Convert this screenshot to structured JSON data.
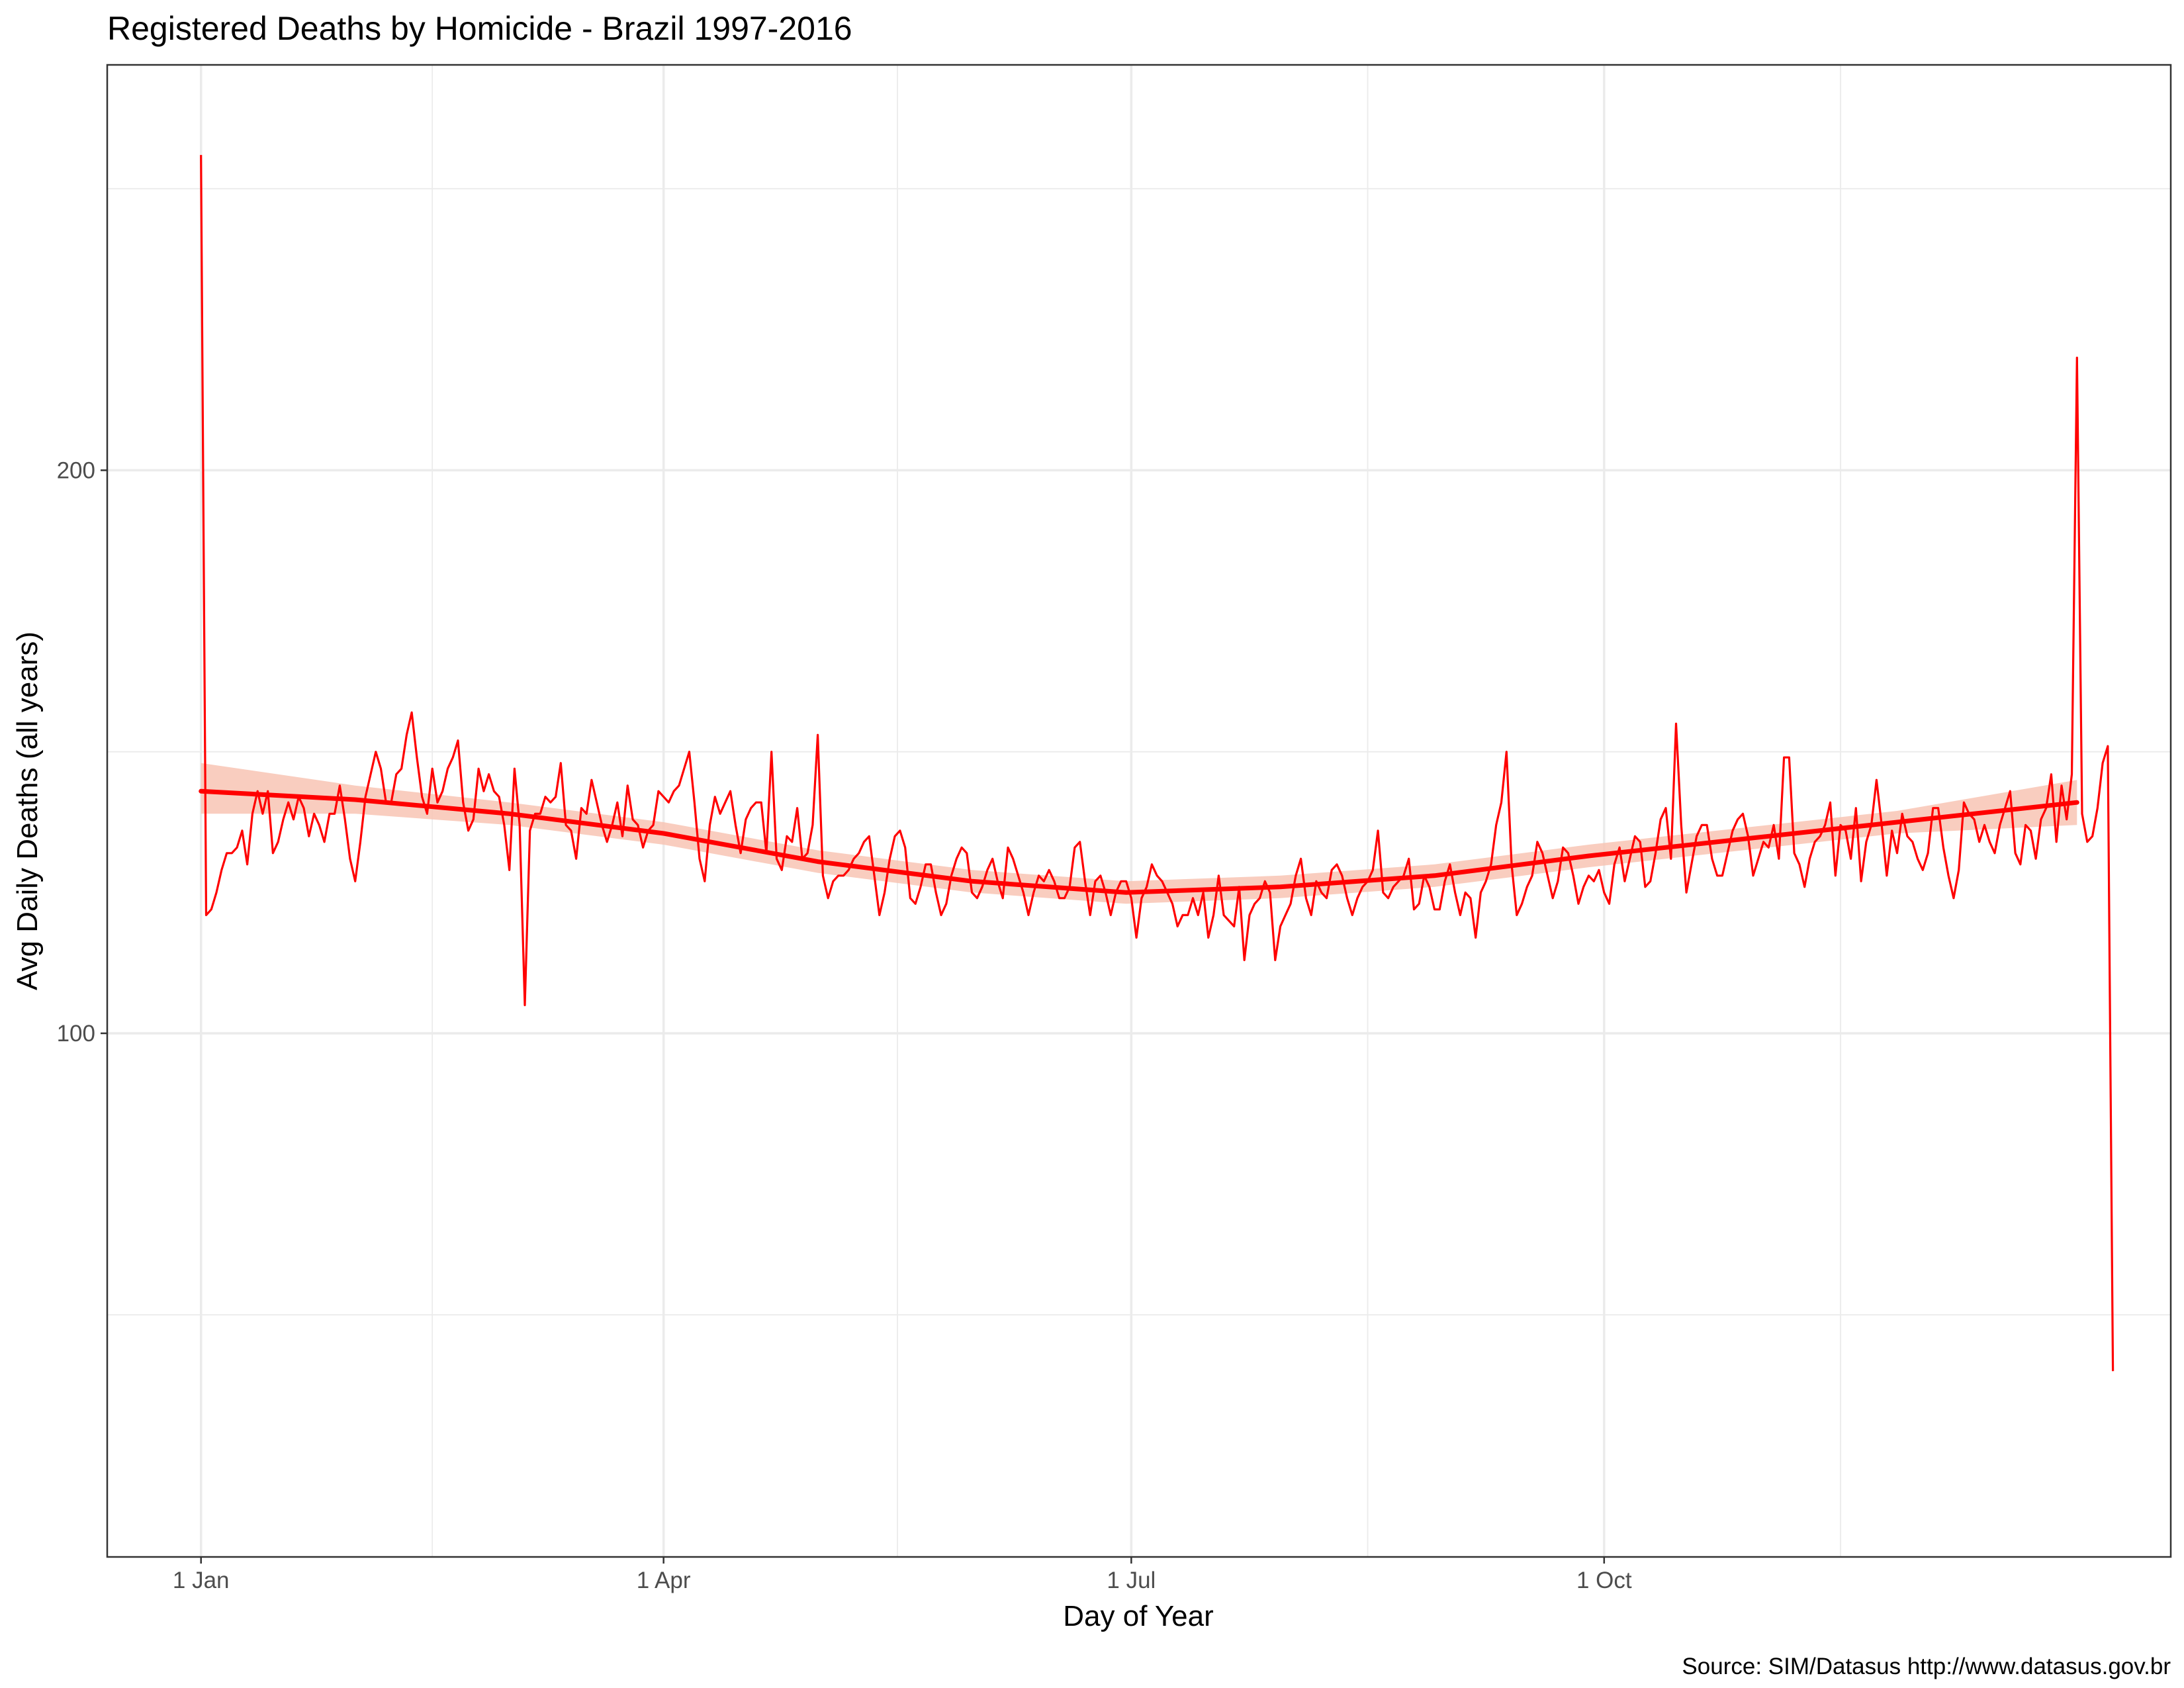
{
  "chart_data": {
    "type": "line",
    "title": "Registered Deaths by Homicide  - Brazil 1997-2016",
    "xlabel": "Day of Year",
    "ylabel": "Avg Daily Deaths (all years)",
    "caption": "Source: SIM/Datasus http://www.datasus.gov.br",
    "x_domain": [
      1,
      366
    ],
    "ylim": [
      7,
      272
    ],
    "x_ticks": [
      {
        "day": 1,
        "label": "1 Jan"
      },
      {
        "day": 91,
        "label": "1 Apr"
      },
      {
        "day": 182,
        "label": "1 Jul"
      },
      {
        "day": 274,
        "label": "1 Oct"
      }
    ],
    "y_ticks": [
      {
        "value": 100,
        "label": "100"
      },
      {
        "value": 200,
        "label": "200"
      }
    ],
    "grid": true,
    "legend": "none",
    "colors": {
      "line": "#ff0000",
      "ribbon": "#f8c4b4",
      "grid": "#ebebeb",
      "panel_border": "#333333"
    },
    "series": [
      {
        "type": "line",
        "values": [
          256,
          121,
          122,
          125,
          129,
          132,
          132,
          133,
          136,
          130,
          139,
          143,
          139,
          143,
          132,
          134,
          138,
          141,
          138,
          142,
          140,
          135,
          139,
          137,
          134,
          139,
          139,
          144,
          138,
          131,
          127,
          134,
          142,
          146,
          150,
          147,
          141,
          141,
          146,
          147,
          153,
          157,
          149,
          142,
          139,
          147,
          141,
          143,
          147,
          149,
          152,
          141,
          136,
          138,
          147,
          143,
          146,
          143,
          142,
          137,
          129,
          147,
          137,
          105,
          136,
          139,
          139,
          142,
          141,
          142,
          148,
          137,
          136,
          131,
          140,
          139,
          145,
          141,
          137,
          134,
          137,
          141,
          135,
          144,
          138,
          137,
          133,
          136,
          137,
          143,
          142,
          141,
          143,
          144,
          147,
          150,
          141,
          131,
          127,
          137,
          142,
          139,
          141,
          143,
          137,
          132,
          138,
          140,
          141,
          141,
          132,
          150,
          131,
          129,
          135,
          134,
          140,
          131,
          132,
          137,
          153,
          128,
          124,
          127,
          128,
          128,
          129,
          131,
          132,
          134,
          135,
          128,
          121,
          125,
          131,
          135,
          136,
          133,
          124,
          123,
          126,
          130,
          130,
          125,
          121,
          123,
          128,
          131,
          133,
          132,
          125,
          124,
          126,
          129,
          131,
          127,
          124,
          133,
          131,
          128,
          125,
          121,
          125,
          128,
          127,
          129,
          127,
          124,
          124,
          126,
          133,
          134,
          127,
          121,
          127,
          128,
          125,
          121,
          125,
          127,
          127,
          124,
          117,
          124,
          126,
          130,
          128,
          127,
          125,
          123,
          119,
          121,
          121,
          124,
          121,
          125,
          117,
          121,
          128,
          121,
          120,
          119,
          126,
          113,
          121,
          123,
          124,
          127,
          125,
          113,
          119,
          121,
          123,
          128,
          131,
          124,
          121,
          127,
          125,
          124,
          129,
          130,
          128,
          124,
          121,
          124,
          126,
          127,
          129,
          136,
          125,
          124,
          126,
          127,
          128,
          131,
          122,
          123,
          128,
          126,
          122,
          122,
          127,
          130,
          125,
          121,
          125,
          124,
          117,
          125,
          127,
          130,
          137,
          141,
          150,
          130,
          121,
          123,
          126,
          128,
          134,
          132,
          128,
          124,
          127,
          133,
          132,
          128,
          123,
          126,
          128,
          127,
          129,
          125,
          123,
          130,
          133,
          127,
          131,
          135,
          134,
          126,
          127,
          132,
          138,
          140,
          131,
          155,
          137,
          125,
          130,
          135,
          137,
          137,
          131,
          128,
          128,
          132,
          136,
          138,
          139,
          135,
          128,
          131,
          134,
          133,
          137,
          131,
          149,
          149,
          132,
          130,
          126,
          131,
          134,
          135,
          137,
          141,
          128,
          137,
          136,
          131,
          140,
          127,
          134,
          137,
          145,
          137,
          128,
          136,
          132,
          139,
          135,
          134,
          131,
          129,
          132,
          140,
          140,
          133,
          128,
          124,
          129,
          141,
          139,
          138,
          134,
          137,
          134,
          132,
          137,
          140,
          143,
          132,
          130,
          137,
          136,
          131,
          138,
          140,
          146,
          134,
          144,
          138,
          146,
          220,
          139,
          134,
          135,
          140,
          148,
          151,
          40
        ]
      },
      {
        "type": "smooth",
        "x": [
          1,
          31,
          61,
          91,
          121,
          151,
          181,
          211,
          241,
          271,
          301,
          331,
          366
        ],
        "values": [
          143,
          141.5,
          139,
          135.5,
          130.5,
          127,
          125,
          126,
          128,
          131.5,
          134.5,
          137.5,
          141
        ],
        "band": [
          [
            139,
            148
          ],
          [
            139,
            144
          ],
          [
            137,
            141
          ],
          [
            133.5,
            137.5
          ],
          [
            128.5,
            132.5
          ],
          [
            125,
            129
          ],
          [
            123,
            127
          ],
          [
            124,
            128
          ],
          [
            126,
            130
          ],
          [
            129.5,
            133.5
          ],
          [
            132.5,
            136.5
          ],
          [
            135.5,
            139.5
          ],
          [
            137,
            145
          ]
        ]
      }
    ]
  }
}
